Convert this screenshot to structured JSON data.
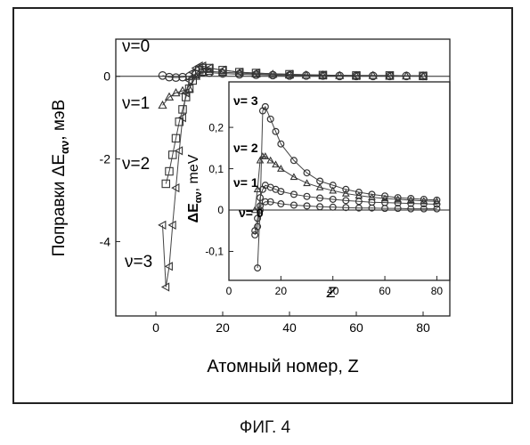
{
  "figure_caption": "ФИГ. 4",
  "chart_data": [
    {
      "type": "scatter",
      "xlabel": "Атомный номер, Z",
      "ylabel": "Поправки ΔE",
      "ylabel_sub": "αν",
      "ylabel_unit": ", мэВ",
      "xlim": [
        -12,
        88
      ],
      "ylim": [
        -5.8,
        0.9
      ],
      "xticks": [
        "0",
        "20",
        "40",
        "60",
        "80"
      ],
      "xtick_values": [
        0,
        20,
        40,
        60,
        80
      ],
      "yticks": [
        "0",
        "-2",
        "-4"
      ],
      "ytick_values": [
        0,
        -2,
        -4
      ],
      "grid": false,
      "series": [
        {
          "name": "ν=0",
          "marker": "circle",
          "x": [
            2,
            4,
            6,
            8,
            10,
            12,
            14,
            16,
            20,
            25,
            30,
            35,
            40,
            45,
            50,
            55,
            60,
            65,
            70,
            75,
            80
          ],
          "y": [
            0.02,
            -0.02,
            -0.03,
            -0.02,
            0.0,
            0.05,
            0.1,
            0.09,
            0.07,
            0.05,
            0.04,
            0.03,
            0.02,
            0.02,
            0.02,
            0.01,
            0.01,
            0.01,
            0.01,
            0.01,
            0.01
          ]
        },
        {
          "name": "ν=1",
          "marker": "triangle-up",
          "x": [
            2,
            4,
            6,
            8,
            10,
            12,
            14,
            16,
            20,
            25,
            30,
            35,
            40,
            45,
            50,
            55,
            60,
            65,
            70,
            75,
            80
          ],
          "y": [
            -0.7,
            -0.5,
            -0.4,
            -0.35,
            -0.3,
            0.0,
            0.1,
            0.12,
            0.1,
            0.08,
            0.06,
            0.05,
            0.04,
            0.03,
            0.03,
            0.02,
            0.02,
            0.02,
            0.01,
            0.01,
            0.01
          ]
        },
        {
          "name": "ν=2",
          "marker": "square",
          "x": [
            3,
            4,
            5,
            6,
            7,
            8,
            9,
            10,
            11,
            12,
            13,
            14,
            16,
            20,
            25,
            30,
            40,
            50,
            60,
            70,
            80
          ],
          "y": [
            -2.6,
            -2.3,
            -1.9,
            -1.5,
            -1.1,
            -0.8,
            -0.5,
            -0.3,
            -0.1,
            0.05,
            0.15,
            0.2,
            0.2,
            0.15,
            0.1,
            0.08,
            0.05,
            0.03,
            0.02,
            0.02,
            0.01
          ]
        },
        {
          "name": "ν=3",
          "marker": "triangle-left",
          "x": [
            2,
            3,
            4,
            5,
            6,
            7,
            8,
            9,
            10,
            11,
            12,
            13,
            14,
            16,
            20,
            25,
            30,
            40,
            50,
            60,
            70,
            80
          ],
          "y": [
            -3.6,
            -5.1,
            -4.6,
            -3.6,
            -2.7,
            -1.8,
            -1.0,
            -0.4,
            -0.1,
            0.1,
            0.2,
            0.25,
            0.25,
            0.2,
            0.15,
            0.1,
            0.08,
            0.05,
            0.03,
            0.02,
            0.02,
            0.01
          ]
        }
      ]
    },
    {
      "type": "scatter",
      "inset": true,
      "xlabel": "Z",
      "ylabel": "ΔE",
      "ylabel_sub": "αν",
      "ylabel_unit": ", meV",
      "xlim": [
        0,
        85
      ],
      "ylim": [
        -0.17,
        0.31
      ],
      "xticks": [
        "0",
        "20",
        "40",
        "60",
        "80"
      ],
      "xtick_values": [
        0,
        20,
        40,
        60,
        80
      ],
      "yticks": [
        "0,2",
        "0,1",
        "0",
        "-0,1"
      ],
      "ytick_values": [
        0.2,
        0.1,
        0,
        -0.1
      ],
      "grid": false,
      "series": [
        {
          "name": "ν= 0",
          "marker": "circle",
          "x": [
            10,
            11,
            12,
            14,
            16,
            20,
            25,
            30,
            35,
            40,
            45,
            50,
            55,
            60,
            65,
            70,
            75,
            80
          ],
          "y": [
            -0.06,
            -0.04,
            0.01,
            0.02,
            0.02,
            0.015,
            0.012,
            0.01,
            0.008,
            0.007,
            0.006,
            0.005,
            0.005,
            0.004,
            0.004,
            0.003,
            0.003,
            0.003
          ]
        },
        {
          "name": "ν= 1",
          "marker": "circle",
          "x": [
            10,
            11,
            12,
            13,
            14,
            16,
            18,
            20,
            25,
            30,
            35,
            40,
            45,
            50,
            55,
            60,
            65,
            70,
            75,
            80
          ],
          "y": [
            -0.05,
            -0.02,
            0.03,
            0.05,
            0.06,
            0.055,
            0.05,
            0.045,
            0.038,
            0.033,
            0.029,
            0.026,
            0.023,
            0.021,
            0.019,
            0.018,
            0.017,
            0.016,
            0.015,
            0.014
          ]
        },
        {
          "name": "ν= 2",
          "marker": "triangle-up",
          "x": [
            10,
            11,
            12,
            13,
            14,
            16,
            18,
            20,
            25,
            30,
            35,
            40,
            45,
            50,
            55,
            60,
            65,
            70,
            75,
            80
          ],
          "y": [
            0.0,
            0.05,
            0.12,
            0.13,
            0.13,
            0.12,
            0.11,
            0.1,
            0.08,
            0.065,
            0.055,
            0.047,
            0.04,
            0.035,
            0.031,
            0.028,
            0.026,
            0.024,
            0.022,
            0.021
          ]
        },
        {
          "name": "ν= 3",
          "marker": "circle",
          "x": [
            11,
            12,
            13,
            14,
            16,
            18,
            20,
            25,
            30,
            35,
            40,
            45,
            50,
            55,
            60,
            65,
            70,
            75,
            80
          ],
          "y": [
            -0.14,
            0.0,
            0.24,
            0.25,
            0.22,
            0.19,
            0.16,
            0.12,
            0.09,
            0.07,
            0.06,
            0.05,
            0.043,
            0.038,
            0.034,
            0.03,
            0.028,
            0.026,
            0.024
          ]
        }
      ]
    }
  ]
}
